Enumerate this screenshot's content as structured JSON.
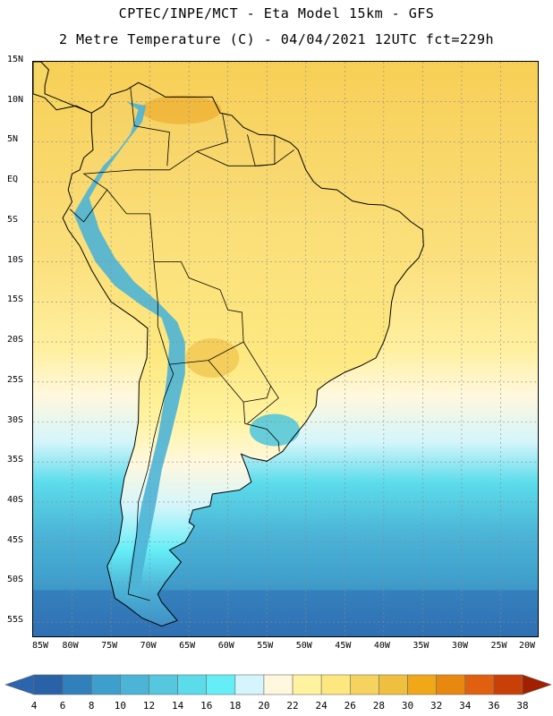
{
  "header": {
    "line1": "CPTEC/INPE/MCT -  Eta Model 15km - GFS",
    "line2": "2 Metre Temperature (C) - 04/04/2021 12UTC fct=229h"
  },
  "map": {
    "lat_labels": [
      "15N",
      "10N",
      "5N",
      "EQ",
      "5S",
      "10S",
      "15S",
      "20S",
      "25S",
      "30S",
      "35S",
      "40S",
      "45S",
      "50S",
      "55S"
    ],
    "lon_labels": [
      "85W",
      "80W",
      "75W",
      "70W",
      "65W",
      "60W",
      "55W",
      "50W",
      "45W",
      "40W",
      "35W",
      "30W",
      "25W",
      "20W"
    ],
    "lat_range": [
      15,
      -57
    ],
    "lon_range": [
      -85,
      -20
    ]
  },
  "colorbar": {
    "levels": [
      "4",
      "6",
      "8",
      "10",
      "12",
      "14",
      "16",
      "18",
      "20",
      "22",
      "24",
      "26",
      "28",
      "30",
      "32",
      "34",
      "36",
      "38"
    ],
    "colors": [
      "#2a62a8",
      "#2f80bb",
      "#3f9fcc",
      "#4cb4d6",
      "#55c8e0",
      "#5cdceb",
      "#66eef7",
      "#d4f5fb",
      "#fff8de",
      "#fff3a0",
      "#fde880",
      "#f5d35e",
      "#efc040",
      "#f0a818",
      "#e8880e",
      "#e06010",
      "#c84008",
      "#b02800"
    ],
    "under_color": "#2b65ad",
    "over_color": "#a02000"
  }
}
